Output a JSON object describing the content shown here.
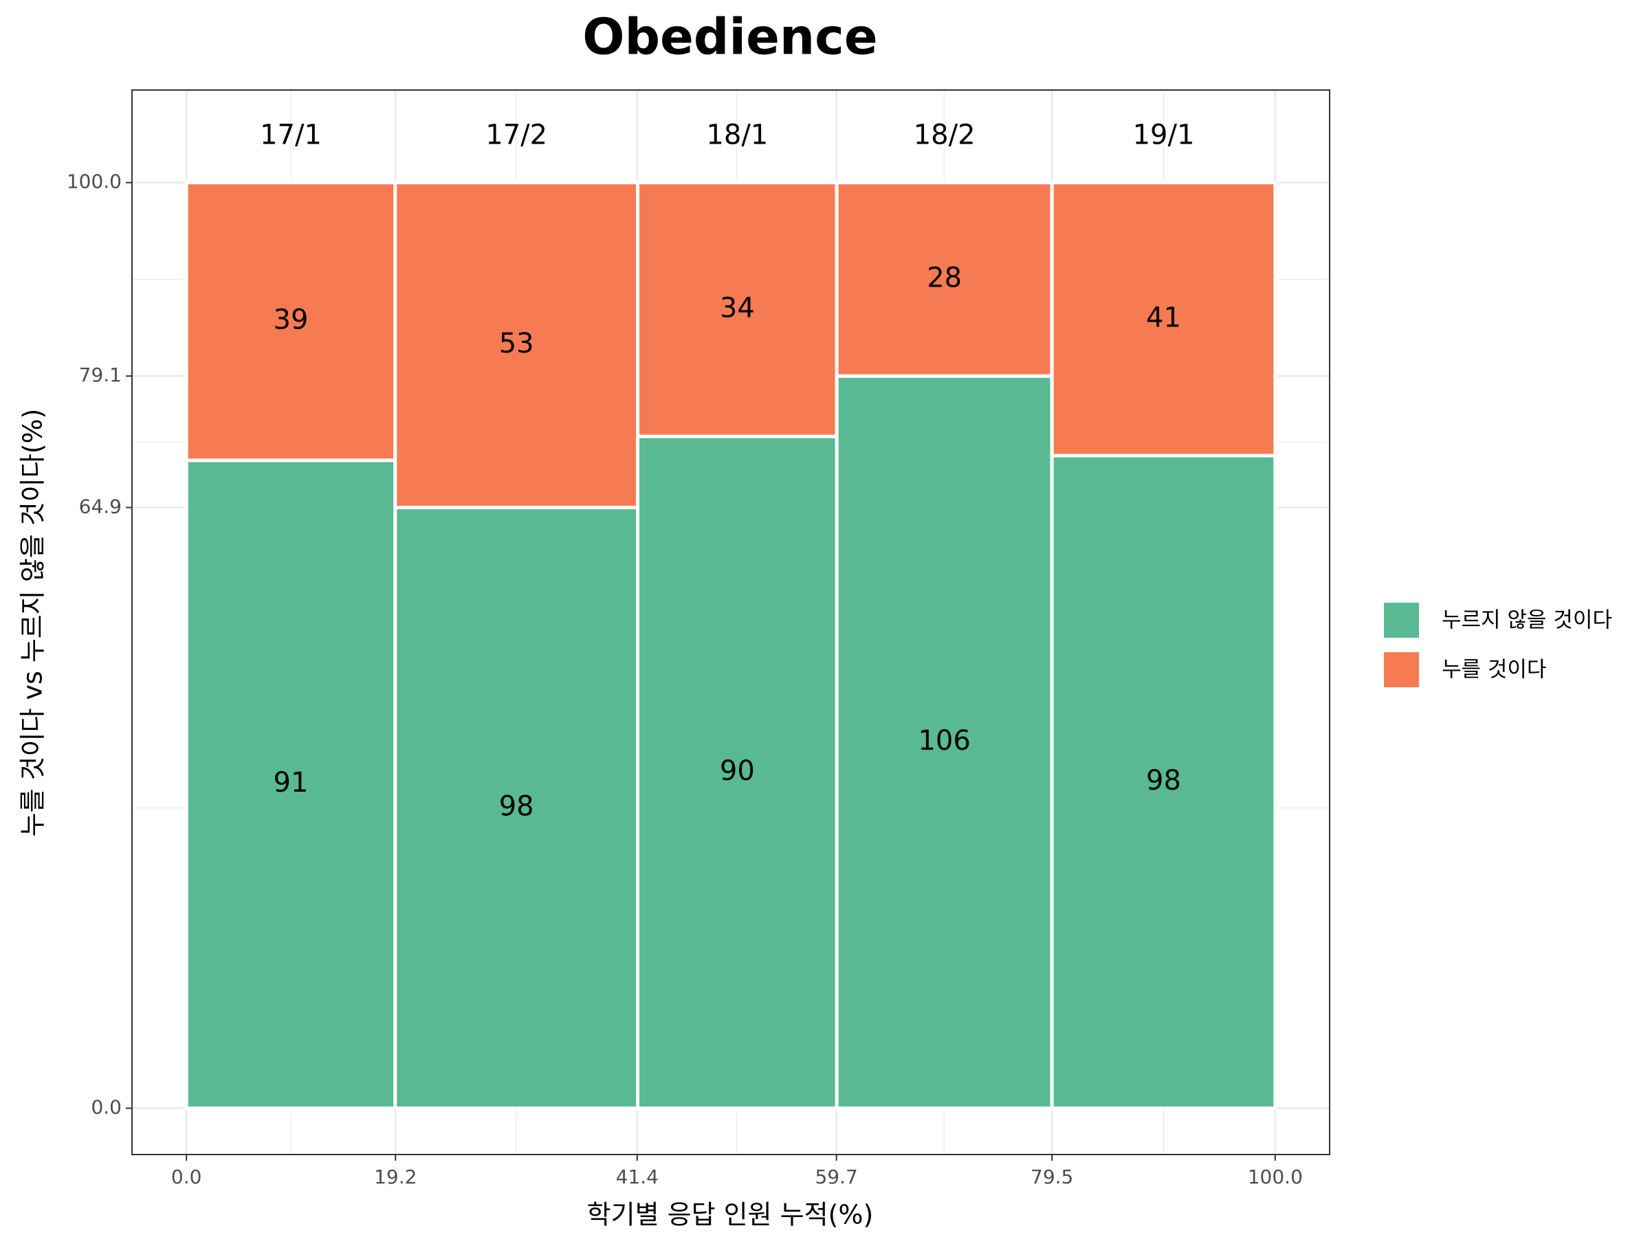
{
  "chart_data": {
    "type": "mosaic",
    "title": "Obedience",
    "x_label": "학기별 응답 인원 누적(%)",
    "y_label": "누를 것이다 vs 누르지 않을 것이다(%)",
    "categories": [
      "17/1",
      "17/2",
      "18/1",
      "18/2",
      "19/1"
    ],
    "series": [
      {
        "name": "누르지 않을 것이다",
        "color": "#58b993",
        "values": [
          91,
          98,
          90,
          106,
          98
        ]
      },
      {
        "name": "누를 것이다",
        "color": "#f77b52",
        "values": [
          39,
          53,
          34,
          28,
          41
        ]
      }
    ],
    "xlim": [
      -5,
      105
    ],
    "ylim": [
      -5,
      110
    ],
    "xticks": [
      {
        "value": 0,
        "label": "0.0"
      },
      19.2,
      41.4,
      59.7,
      79.5,
      {
        "value": 100,
        "label": "100.0"
      }
    ],
    "yticks": [
      {
        "value": 0,
        "label": "0.0"
      },
      64.9,
      79.1,
      {
        "value": 100,
        "label": "100.0"
      }
    ],
    "grid": true,
    "legend": "right"
  }
}
